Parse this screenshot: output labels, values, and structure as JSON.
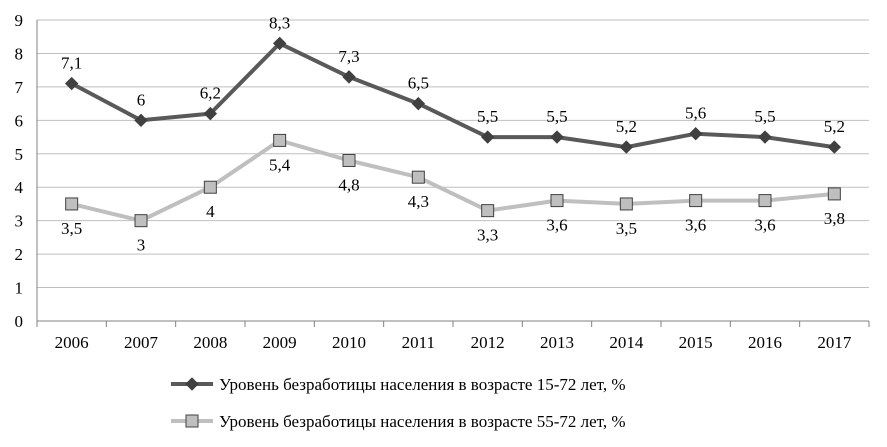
{
  "chart_data": {
    "type": "line",
    "title": "",
    "xlabel": "",
    "ylabel": "",
    "ylim": [
      0,
      9
    ],
    "yticks": [
      "0",
      "1",
      "2",
      "3",
      "4",
      "5",
      "6",
      "7",
      "8",
      "9"
    ],
    "grid": true,
    "legend_position": "bottom",
    "categories": [
      "2006",
      "2007",
      "2008",
      "2009",
      "2010",
      "2011",
      "2012",
      "2013",
      "2014",
      "2015",
      "2016",
      "2017"
    ],
    "series": [
      {
        "name": "Уровень безработицы населения в возрасте 15-72 лет, %",
        "marker": "diamond",
        "color": "#595959",
        "values": [
          7.1,
          6,
          6.2,
          8.3,
          7.3,
          6.5,
          5.5,
          5.5,
          5.2,
          5.6,
          5.5,
          5.2
        ],
        "labels": [
          "7,1",
          "6",
          "6,2",
          "8,3",
          "7,3",
          "6,5",
          "5,5",
          "5,5",
          "5,2",
          "5,6",
          "5,5",
          "5,2"
        ]
      },
      {
        "name": "Уровень безработицы населения в возрасте 55-72 лет, %",
        "marker": "square",
        "color": "#bfbfbf",
        "values": [
          3.5,
          3,
          4,
          5.4,
          4.8,
          4.3,
          3.3,
          3.6,
          3.5,
          3.6,
          3.6,
          3.8
        ],
        "labels": [
          "3,5",
          "3",
          "4",
          "5,4",
          "4,8",
          "4,3",
          "3,3",
          "3,6",
          "3,5",
          "3,6",
          "3,6",
          "3,8"
        ]
      }
    ]
  }
}
